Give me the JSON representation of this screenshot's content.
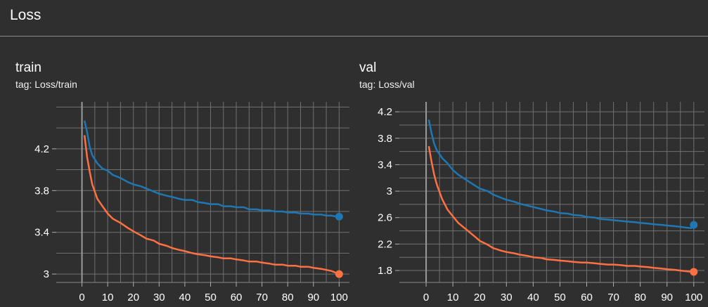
{
  "section": {
    "title": "Loss"
  },
  "cards": [
    {
      "title": "train",
      "tag": "tag: Loss/train"
    },
    {
      "title": "val",
      "tag": "tag: Loss/val"
    }
  ],
  "colors": {
    "series_blue": "#1f77b4",
    "series_orange": "#ff7043",
    "grid": "#707070",
    "axis_text": "#ffffff",
    "background": "#2f2f2f"
  },
  "chart_data": [
    {
      "type": "line",
      "title": "train",
      "subtitle": "tag: Loss/train",
      "xlabel": "",
      "ylabel": "",
      "xlim": [
        -10,
        104
      ],
      "ylim": [
        2.92,
        4.65
      ],
      "xticks": [
        0,
        10,
        20,
        30,
        40,
        50,
        60,
        70,
        80,
        90,
        100
      ],
      "yticks": [
        3,
        3.4,
        3.8,
        4.2
      ],
      "ytick_labels": [
        "3",
        "3.4",
        "3.8",
        "4.2"
      ],
      "grid": true,
      "legend": "none",
      "series": [
        {
          "color": "#1f77b4",
          "x": [
            1,
            2,
            3,
            4,
            6,
            8,
            10,
            12,
            15,
            18,
            20,
            23,
            25,
            28,
            30,
            33,
            35,
            38,
            40,
            43,
            45,
            48,
            50,
            53,
            55,
            58,
            60,
            63,
            65,
            68,
            70,
            73,
            75,
            78,
            80,
            83,
            85,
            88,
            90,
            93,
            95,
            97,
            99,
            100
          ],
          "y": [
            4.47,
            4.36,
            4.22,
            4.14,
            4.06,
            4.01,
            3.99,
            3.95,
            3.92,
            3.88,
            3.86,
            3.84,
            3.82,
            3.79,
            3.77,
            3.75,
            3.74,
            3.72,
            3.71,
            3.71,
            3.69,
            3.68,
            3.67,
            3.67,
            3.65,
            3.65,
            3.64,
            3.64,
            3.62,
            3.62,
            3.61,
            3.61,
            3.6,
            3.6,
            3.59,
            3.59,
            3.58,
            3.58,
            3.57,
            3.57,
            3.56,
            3.56,
            3.55,
            3.55
          ]
        },
        {
          "color": "#ff7043",
          "x": [
            1,
            2,
            3,
            4,
            6,
            8,
            10,
            12,
            15,
            18,
            20,
            23,
            25,
            28,
            30,
            33,
            35,
            38,
            40,
            43,
            45,
            48,
            50,
            53,
            55,
            58,
            60,
            63,
            65,
            68,
            70,
            73,
            75,
            78,
            80,
            83,
            85,
            88,
            90,
            93,
            95,
            97,
            99,
            100
          ],
          "y": [
            4.33,
            4.12,
            3.98,
            3.86,
            3.72,
            3.65,
            3.58,
            3.53,
            3.49,
            3.44,
            3.41,
            3.37,
            3.34,
            3.32,
            3.29,
            3.27,
            3.25,
            3.23,
            3.22,
            3.2,
            3.19,
            3.18,
            3.17,
            3.16,
            3.15,
            3.15,
            3.14,
            3.13,
            3.12,
            3.12,
            3.11,
            3.1,
            3.09,
            3.09,
            3.08,
            3.08,
            3.07,
            3.07,
            3.06,
            3.05,
            3.04,
            3.03,
            3.01,
            3.0
          ]
        }
      ]
    },
    {
      "type": "line",
      "title": "val",
      "subtitle": "tag: Loss/val",
      "xlabel": "",
      "ylabel": "",
      "xlim": [
        -10,
        104
      ],
      "ylim": [
        1.62,
        4.35
      ],
      "xticks": [
        0,
        10,
        20,
        30,
        40,
        50,
        60,
        70,
        80,
        90,
        100
      ],
      "yticks": [
        1.8,
        2.2,
        2.6,
        3,
        3.4,
        3.8,
        4.2
      ],
      "ytick_labels": [
        "1.8",
        "2.2",
        "2.6",
        "3",
        "3.4",
        "3.8",
        "4.2"
      ],
      "grid": true,
      "legend": "none",
      "series": [
        {
          "color": "#1f77b4",
          "x": [
            1,
            2,
            3,
            4,
            6,
            8,
            10,
            12,
            15,
            18,
            20,
            23,
            25,
            28,
            30,
            33,
            35,
            38,
            40,
            43,
            45,
            48,
            50,
            53,
            55,
            58,
            60,
            63,
            65,
            68,
            70,
            73,
            75,
            78,
            80,
            83,
            85,
            88,
            90,
            93,
            95,
            97,
            99,
            100
          ],
          "y": [
            4.08,
            3.88,
            3.72,
            3.62,
            3.5,
            3.42,
            3.32,
            3.25,
            3.17,
            3.09,
            3.04,
            3.0,
            2.95,
            2.9,
            2.87,
            2.84,
            2.81,
            2.78,
            2.76,
            2.73,
            2.71,
            2.69,
            2.67,
            2.66,
            2.64,
            2.63,
            2.61,
            2.6,
            2.58,
            2.57,
            2.56,
            2.55,
            2.54,
            2.53,
            2.52,
            2.51,
            2.5,
            2.49,
            2.48,
            2.47,
            2.46,
            2.45,
            2.44,
            2.49
          ]
        },
        {
          "color": "#ff7043",
          "x": [
            1,
            2,
            3,
            4,
            6,
            8,
            10,
            12,
            15,
            18,
            20,
            23,
            25,
            28,
            30,
            33,
            35,
            38,
            40,
            43,
            45,
            48,
            50,
            53,
            55,
            58,
            60,
            63,
            65,
            68,
            70,
            73,
            75,
            78,
            80,
            83,
            85,
            88,
            90,
            93,
            95,
            97,
            99,
            100
          ],
          "y": [
            3.68,
            3.45,
            3.25,
            3.1,
            2.88,
            2.72,
            2.62,
            2.52,
            2.42,
            2.32,
            2.25,
            2.19,
            2.14,
            2.1,
            2.08,
            2.06,
            2.04,
            2.02,
            2.0,
            1.99,
            1.97,
            1.96,
            1.95,
            1.94,
            1.93,
            1.92,
            1.92,
            1.91,
            1.9,
            1.89,
            1.89,
            1.88,
            1.87,
            1.87,
            1.86,
            1.85,
            1.84,
            1.83,
            1.82,
            1.81,
            1.8,
            1.79,
            1.78,
            1.78
          ]
        }
      ]
    }
  ]
}
